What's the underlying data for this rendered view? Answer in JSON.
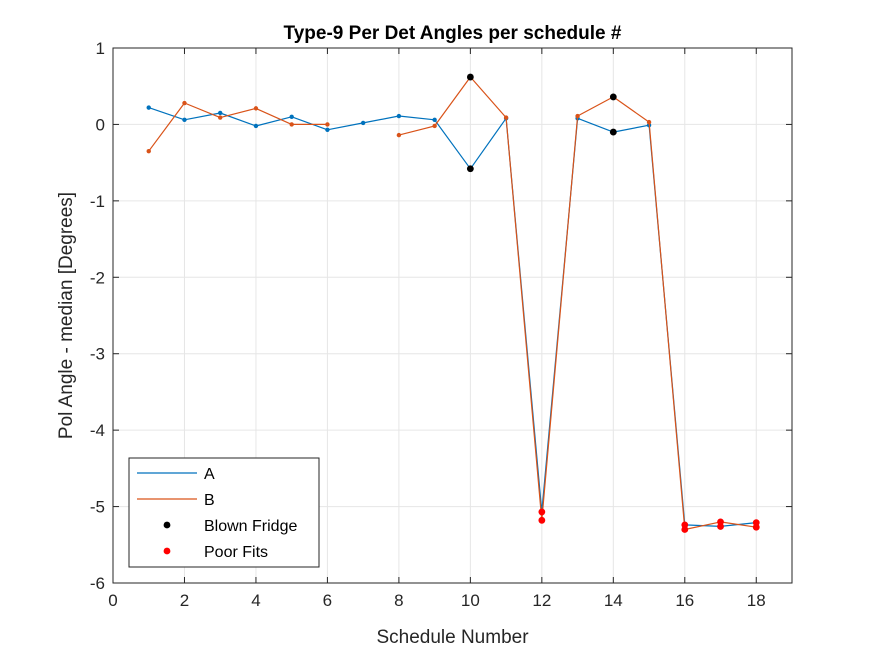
{
  "chart_data": {
    "type": "line",
    "title": "Type-9 Per Det Angles per schedule #",
    "xlabel": "Schedule Number",
    "ylabel": "Pol Angle - median [Degrees]",
    "xlim": [
      0,
      19
    ],
    "ylim": [
      -6,
      1
    ],
    "xticks": [
      "0",
      "2",
      "4",
      "6",
      "8",
      "10",
      "12",
      "14",
      "16",
      "18"
    ],
    "yticks": [
      "1",
      "0",
      "-1",
      "-2",
      "-3",
      "-4",
      "-5",
      "-6"
    ],
    "grid": true,
    "legend_position": "bottom-left",
    "series": [
      {
        "name": "A",
        "color": "#0072BD",
        "segments": [
          [
            [
              1,
              0.22
            ],
            [
              2,
              0.06
            ],
            [
              3,
              0.15
            ],
            [
              4,
              -0.02
            ],
            [
              5,
              0.1
            ],
            [
              6,
              -0.07
            ],
            [
              7,
              0.02
            ],
            [
              8,
              0.11
            ],
            [
              9,
              0.06
            ],
            [
              10,
              -0.58
            ],
            [
              11,
              0.08
            ],
            [
              12,
              -5.07
            ],
            [
              13,
              0.08
            ],
            [
              14,
              -0.1
            ],
            [
              15,
              -0.01
            ],
            [
              16,
              -5.24
            ],
            [
              17,
              -5.26
            ],
            [
              18,
              -5.21
            ]
          ]
        ]
      },
      {
        "name": "B",
        "color": "#D95319",
        "segments": [
          [
            [
              1,
              -0.35
            ],
            [
              2,
              0.28
            ],
            [
              3,
              0.09
            ],
            [
              4,
              0.21
            ],
            [
              5,
              0.0
            ],
            [
              6,
              0.0
            ]
          ],
          [
            [
              8,
              -0.14
            ],
            [
              9,
              -0.02
            ],
            [
              10,
              0.62
            ],
            [
              11,
              0.09
            ],
            [
              12,
              -5.18
            ],
            [
              13,
              0.11
            ],
            [
              14,
              0.36
            ],
            [
              15,
              0.03
            ],
            [
              16,
              -5.3
            ],
            [
              17,
              -5.2
            ],
            [
              18,
              -5.27
            ]
          ]
        ]
      },
      {
        "name": "Blown Fridge",
        "color": "#000000",
        "marker_only": true,
        "points": [
          [
            10,
            0.62
          ],
          [
            10,
            -0.58
          ],
          [
            14,
            0.36
          ],
          [
            14,
            -0.1
          ]
        ]
      },
      {
        "name": "Poor Fits",
        "color": "#FF0000",
        "marker_only": true,
        "points": [
          [
            12,
            -5.07
          ],
          [
            12,
            -5.18
          ],
          [
            16,
            -5.24
          ],
          [
            16,
            -5.3
          ],
          [
            17,
            -5.2
          ],
          [
            17,
            -5.26
          ],
          [
            18,
            -5.21
          ],
          [
            18,
            -5.27
          ]
        ]
      }
    ]
  }
}
